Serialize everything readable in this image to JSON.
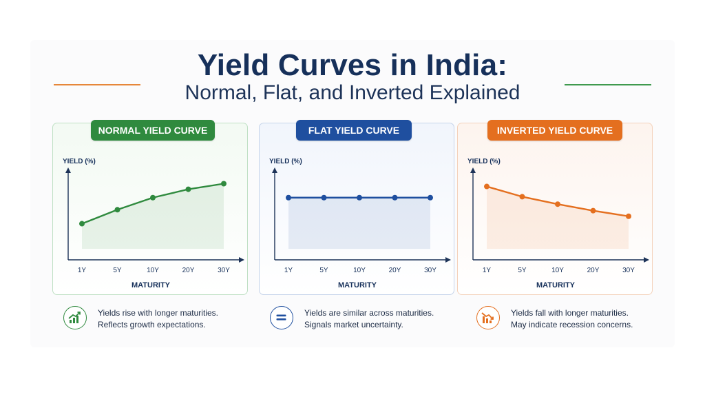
{
  "title": "Yield Curves in India:",
  "subtitle": "Normal, Flat, and Inverted Explained",
  "colors": {
    "normal": "#2f8a3e",
    "flat": "#1f4f9f",
    "inverted": "#e46f1f",
    "navy": "#16305a"
  },
  "chart_data": [
    {
      "type": "line",
      "title": "NORMAL YIELD CURVE",
      "xlabel": "MATURITY",
      "ylabel": "YIELD (%)",
      "categories": [
        "1Y",
        "5Y",
        "10Y",
        "20Y",
        "30Y"
      ],
      "values": [
        2.7,
        4.2,
        5.5,
        6.4,
        7.0
      ],
      "ylim": [
        0,
        8
      ],
      "grid": false,
      "color": "#2f8a3e"
    },
    {
      "type": "line",
      "title": "FLAT YIELD CURVE",
      "xlabel": "MATURITY",
      "ylabel": "YIELD (%)",
      "categories": [
        "1Y",
        "5Y",
        "10Y",
        "20Y",
        "30Y"
      ],
      "values": [
        5.5,
        5.5,
        5.5,
        5.5,
        5.5
      ],
      "ylim": [
        0,
        8
      ],
      "grid": false,
      "color": "#1f4f9f"
    },
    {
      "type": "line",
      "title": "INVERTED YIELD CURVE",
      "xlabel": "MATURITY",
      "ylabel": "YIELD (%)",
      "categories": [
        "1Y",
        "5Y",
        "10Y",
        "20Y",
        "30Y"
      ],
      "values": [
        6.7,
        5.6,
        4.8,
        4.1,
        3.5
      ],
      "ylim": [
        0,
        8
      ],
      "grid": false,
      "color": "#e46f1f"
    }
  ],
  "captions": [
    {
      "line1": "Yields rise with longer maturities.",
      "line2": "Reflects growth expectations.",
      "icon": "rising-chart-icon"
    },
    {
      "line1": "Yields are similar across maturities.",
      "line2": "Signals market uncertainty.",
      "icon": "equals-icon"
    },
    {
      "line1": "Yields fall with longer maturities.",
      "line2": "May indicate recession concerns.",
      "icon": "falling-chart-icon"
    }
  ]
}
